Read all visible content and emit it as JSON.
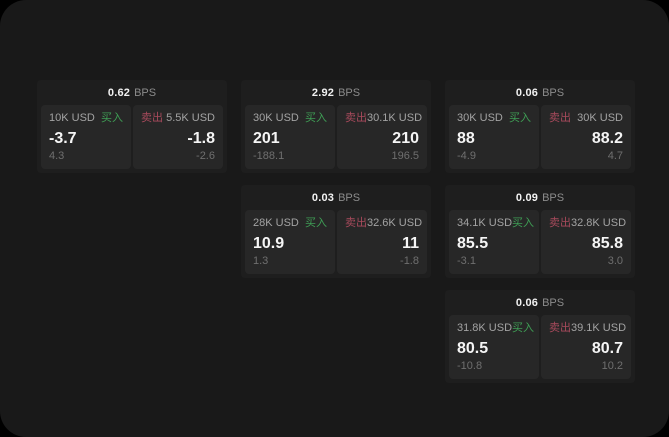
{
  "colors": {
    "background_outside": "#000000",
    "page_background": "#191919",
    "card_background": "#1e1e1e",
    "panel_background": "#272727",
    "buy_green": "#3f9e55",
    "sell_red": "#a84a5c",
    "primary_text": "#f5f5f5",
    "muted_text": "#a3a3a3",
    "dim_text": "#6f6f6f"
  },
  "cards": [
    {
      "col": 1,
      "row": 1,
      "bps": "0.62",
      "unit": "BPS",
      "buy": {
        "amount": "10K USD",
        "side": "买入",
        "price": "-3.7",
        "delta": "4.3"
      },
      "sell": {
        "amount": "5.5K USD",
        "side": "卖出",
        "price": "-1.8",
        "delta": "-2.6"
      }
    },
    {
      "col": 2,
      "row": 1,
      "bps": "2.92",
      "unit": "BPS",
      "buy": {
        "amount": "30K USD",
        "side": "买入",
        "price": "201",
        "delta": "-188.1"
      },
      "sell": {
        "amount": "30.1K USD",
        "side": "卖出",
        "price": "210",
        "delta": "196.5"
      }
    },
    {
      "col": 3,
      "row": 1,
      "bps": "0.06",
      "unit": "BPS",
      "buy": {
        "amount": "30K USD",
        "side": "买入",
        "price": "88",
        "delta": "-4.9"
      },
      "sell": {
        "amount": "30K USD",
        "side": "卖出",
        "price": "88.2",
        "delta": "4.7"
      }
    },
    {
      "col": 2,
      "row": 2,
      "bps": "0.03",
      "unit": "BPS",
      "buy": {
        "amount": "28K USD",
        "side": "买入",
        "price": "10.9",
        "delta": "1.3"
      },
      "sell": {
        "amount": "32.6K USD",
        "side": "卖出",
        "price": "11",
        "delta": "-1.8"
      }
    },
    {
      "col": 3,
      "row": 2,
      "bps": "0.09",
      "unit": "BPS",
      "buy": {
        "amount": "34.1K USD",
        "side": "买入",
        "price": "85.5",
        "delta": "-3.1"
      },
      "sell": {
        "amount": "32.8K USD",
        "side": "卖出",
        "price": "85.8",
        "delta": "3.0"
      }
    },
    {
      "col": 3,
      "row": 3,
      "bps": "0.06",
      "unit": "BPS",
      "buy": {
        "amount": "31.8K USD",
        "side": "买入",
        "price": "80.5",
        "delta": "-10.8"
      },
      "sell": {
        "amount": "39.1K USD",
        "side": "卖出",
        "price": "80.7",
        "delta": "10.2"
      }
    }
  ]
}
